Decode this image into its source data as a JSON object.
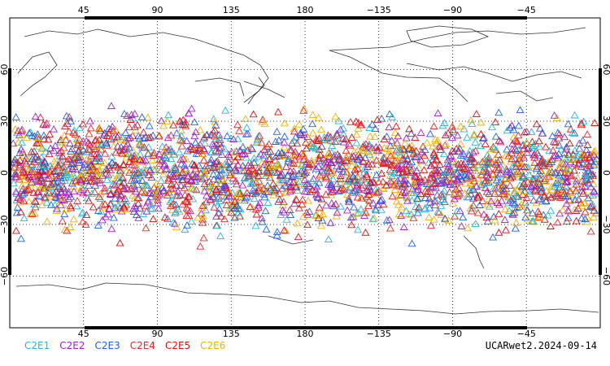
{
  "map": {
    "lon_ticks": [
      "45",
      "90",
      "135",
      "180",
      "−135",
      "−90",
      "−45"
    ],
    "lon_tick_values": [
      45,
      90,
      135,
      180,
      -135,
      -90,
      -45
    ],
    "lat_ticks": [
      "60",
      "30",
      "0",
      "−30",
      "−60"
    ],
    "lat_tick_values": [
      60,
      30,
      0,
      -30,
      -60
    ],
    "lon_range": [
      0,
      360
    ],
    "lat_range": [
      -90,
      90
    ],
    "grid": "dotted",
    "colors": {
      "C2E1": "#22b8d8",
      "C2E2": "#a020c8",
      "C2E3": "#2060e0",
      "C2E4": "#e02828",
      "C2E5": "#d81010",
      "C2E6": "#f0b000"
    },
    "marker": "triangle-outline",
    "observation_band_lat": [
      -45,
      45
    ]
  },
  "legend": {
    "items": [
      {
        "label": "C2E1",
        "color": "#22b8d8"
      },
      {
        "label": "C2E2",
        "color": "#a020c8"
      },
      {
        "label": "C2E3",
        "color": "#2060e0"
      },
      {
        "label": "C2E4",
        "color": "#e02828"
      },
      {
        "label": "C2E5",
        "color": "#d81010"
      },
      {
        "label": "C2E6",
        "color": "#f0b000"
      }
    ]
  },
  "caption": "UCARwet2.2024-09-14"
}
